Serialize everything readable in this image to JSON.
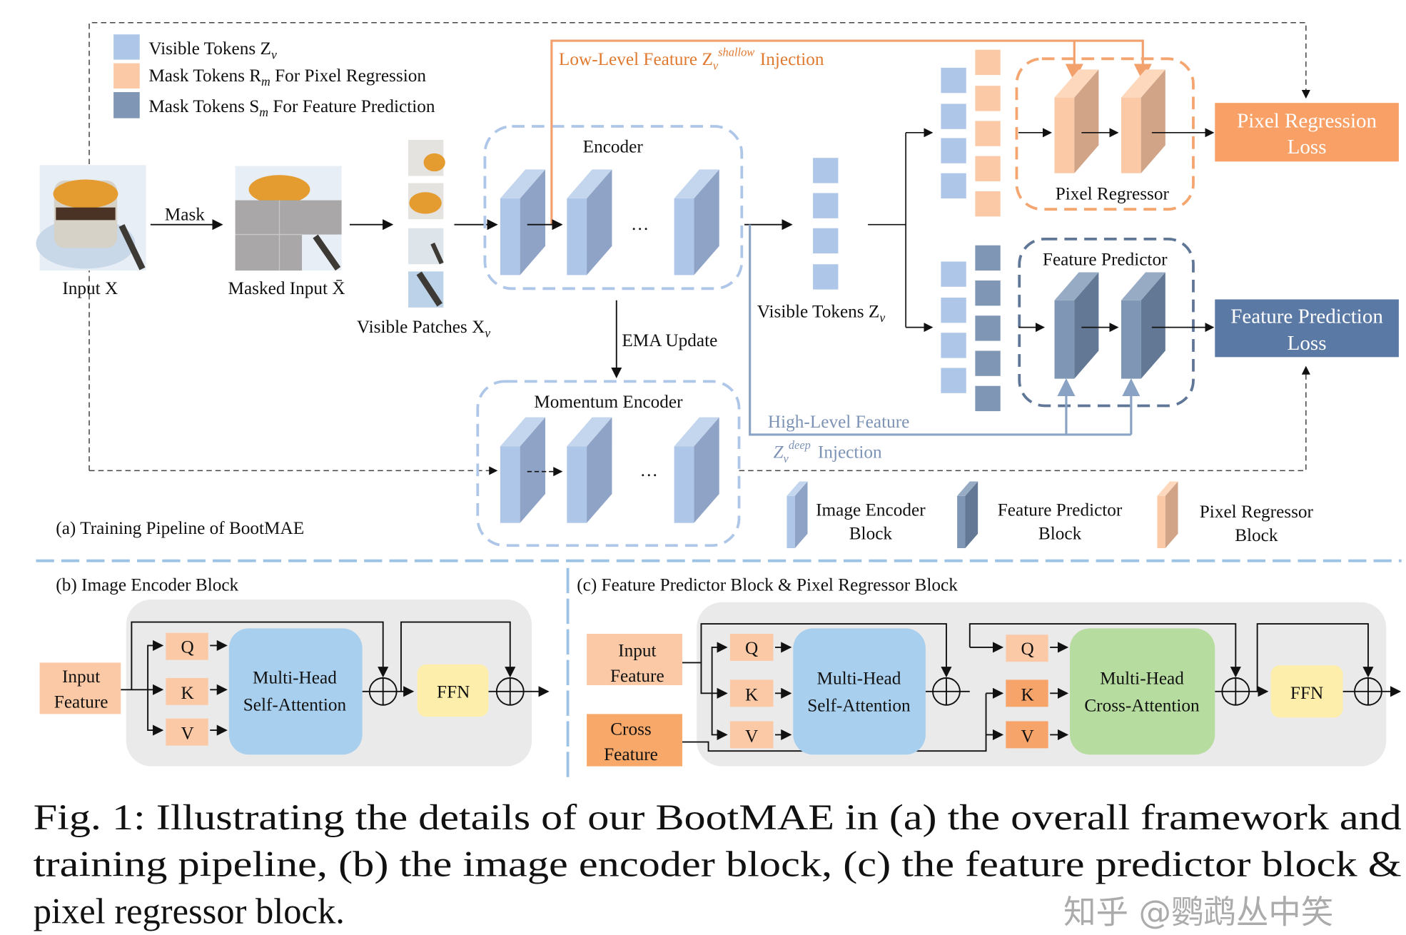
{
  "legend": {
    "visible_tokens": "Visible Tokens Z",
    "visible_tokens_sub": "v",
    "mask_r_prefix": "Mask Tokens R",
    "mask_r_sub": "m",
    "mask_r_suffix": " For Pixel Regression",
    "mask_s_prefix": "Mask Tokens S",
    "mask_s_sub": "m",
    "mask_s_suffix": " For Feature Prediction"
  },
  "pipeline": {
    "input_label": "Input X",
    "mask_label": "Mask",
    "masked_input_label": "Masked Input X̄",
    "visible_patches_label": "Visible Patches X",
    "visible_patches_sub": "v",
    "encoder_label": "Encoder",
    "ellipsis": "…",
    "low_level_prefix": "Low-Level Feature Z",
    "low_level_sup": "shallow",
    "low_level_sub": "v",
    "low_level_suffix": "Injection",
    "visible_tokens_label": "Visible Tokens Z",
    "visible_tokens_sub": "v",
    "pixel_regressor_label": "Pixel Regressor",
    "feature_predictor_label": "Feature Predictor",
    "pixel_loss_line1": "Pixel Regression",
    "pixel_loss_line2": "Loss",
    "feature_loss_line1": "Feature Prediction",
    "feature_loss_line2": "Loss",
    "ema_label": "EMA Update",
    "momentum_encoder_label": "Momentum Encoder",
    "high_level_line1": "High-Level Feature",
    "high_level_z": "Z",
    "high_level_sup": "deep",
    "high_level_sub": "v",
    "high_level_suffix": "Injection",
    "title": "(a) Training Pipeline of BootMAE",
    "block_legend": [
      {
        "line1": "Image Encoder",
        "line2": "Block"
      },
      {
        "line1": "Feature Predictor",
        "line2": "Block"
      },
      {
        "line1": "Pixel Regressor",
        "line2": "Block"
      }
    ]
  },
  "encoder_block": {
    "title": "(b) Image Encoder Block",
    "input_line1": "Input",
    "input_line2": "Feature",
    "q": "Q",
    "k": "K",
    "v": "V",
    "attn_line1": "Multi-Head",
    "attn_line2": "Self-Attention",
    "ffn": "FFN"
  },
  "predictor_block": {
    "title": "(c) Feature Predictor Block & Pixel Regressor Block",
    "input_line1": "Input",
    "input_line2": "Feature",
    "cross_line1": "Cross",
    "cross_line2": "Feature",
    "q": "Q",
    "k": "K",
    "v": "V",
    "self_attn_line1": "Multi-Head",
    "self_attn_line2": "Self-Attention",
    "cross_attn_line1": "Multi-Head",
    "cross_attn_line2": "Cross-Attention",
    "ffn": "FFN"
  },
  "caption": {
    "line1": "Fig. 1: Illustrating the details of our BootMAE in (a) the overall framework and",
    "line2": "training pipeline, (b) the image encoder block, (c) the feature predictor block &",
    "line3": "pixel regressor block."
  },
  "watermark": "知乎 @鹦鹉丛中笑",
  "colors": {
    "visible_token": "#aec6e8",
    "pixel_mask_token": "#fbc9a6",
    "feature_mask_token": "#7f97b4",
    "pixel_loss": "#f8a066",
    "feature_loss": "#5b79a5",
    "low_level_injection": "#f2a06c",
    "high_level_injection": "#8aa3c4",
    "self_attention": "#a9cfee",
    "cross_attention": "#b6dc9f",
    "ffn": "#fdeeab"
  }
}
